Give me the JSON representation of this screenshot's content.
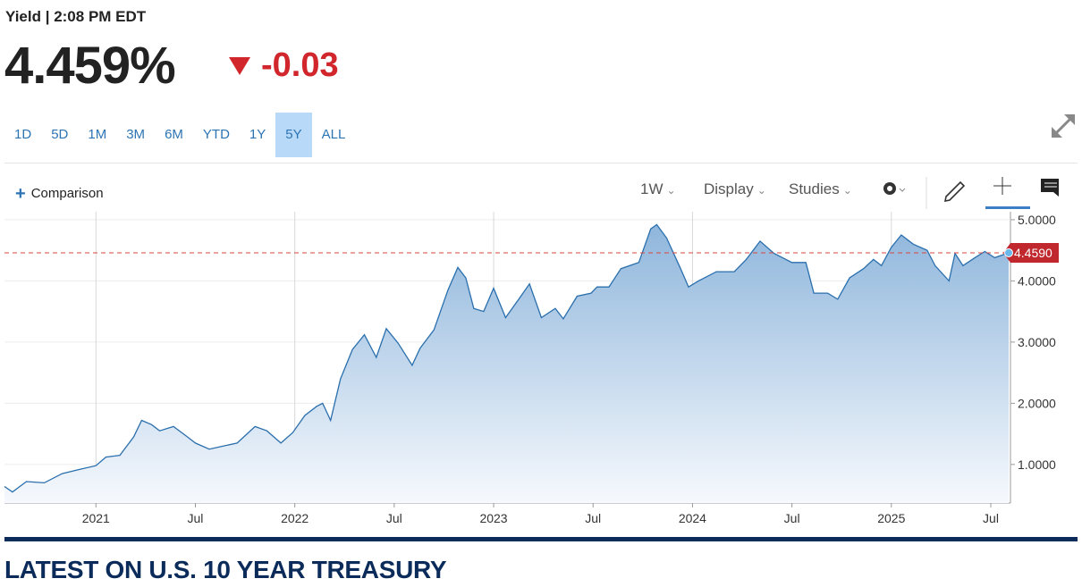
{
  "header": {
    "label": "Yield | 2:08 PM EDT",
    "price": "4.459%",
    "change": "-0.03"
  },
  "ranges": {
    "buttons": [
      "1D",
      "5D",
      "1M",
      "3M",
      "6M",
      "YTD",
      "1Y",
      "5Y",
      "ALL"
    ],
    "active": "5Y"
  },
  "toolbar": {
    "comparison": "Comparison",
    "interval": "1W",
    "display": "Display",
    "studies": "Studies"
  },
  "chart_data": {
    "type": "area",
    "x": [
      2020.54,
      2020.58,
      2020.65,
      2020.74,
      2020.83,
      2020.92,
      2021.0,
      2021.05,
      2021.12,
      2021.19,
      2021.23,
      2021.28,
      2021.32,
      2021.39,
      2021.46,
      2021.5,
      2021.57,
      2021.64,
      2021.71,
      2021.8,
      2021.86,
      2021.93,
      2021.99,
      2022.05,
      2022.11,
      2022.14,
      2022.18,
      2022.23,
      2022.29,
      2022.35,
      2022.41,
      2022.46,
      2022.52,
      2022.59,
      2022.63,
      2022.7,
      2022.77,
      2022.82,
      2022.86,
      2022.9,
      2022.95,
      2023.0,
      2023.06,
      2023.13,
      2023.18,
      2023.24,
      2023.31,
      2023.35,
      2023.42,
      2023.49,
      2023.52,
      2023.58,
      2023.64,
      2023.73,
      2023.79,
      2023.82,
      2023.87,
      2023.94,
      2023.98,
      2024.03,
      2024.12,
      2024.21,
      2024.27,
      2024.34,
      2024.41,
      2024.5,
      2024.57,
      2024.61,
      2024.68,
      2024.73,
      2024.79,
      2024.86,
      2024.91,
      2024.95,
      2025.0,
      2025.05,
      2025.11,
      2025.18,
      2025.22,
      2025.29,
      2025.32,
      2025.36,
      2025.42,
      2025.47,
      2025.52,
      2025.59
    ],
    "values": [
      0.64,
      0.55,
      0.72,
      0.7,
      0.85,
      0.92,
      0.98,
      1.12,
      1.15,
      1.45,
      1.72,
      1.65,
      1.55,
      1.62,
      1.45,
      1.35,
      1.25,
      1.3,
      1.35,
      1.62,
      1.55,
      1.35,
      1.52,
      1.8,
      1.95,
      2.0,
      1.72,
      2.4,
      2.88,
      3.12,
      2.75,
      3.22,
      2.98,
      2.62,
      2.9,
      3.2,
      3.85,
      4.22,
      4.05,
      3.55,
      3.5,
      3.88,
      3.4,
      3.72,
      3.95,
      3.4,
      3.55,
      3.38,
      3.75,
      3.8,
      3.9,
      3.9,
      4.2,
      4.3,
      4.85,
      4.92,
      4.7,
      4.2,
      3.9,
      4.0,
      4.15,
      4.15,
      4.35,
      4.65,
      4.45,
      4.3,
      4.3,
      3.8,
      3.8,
      3.7,
      4.05,
      4.2,
      4.35,
      4.25,
      4.55,
      4.75,
      4.6,
      4.5,
      4.25,
      4.0,
      4.45,
      4.25,
      4.38,
      4.48,
      4.38,
      4.459
    ],
    "color": "#2a6fad",
    "xlim": [
      2020.54,
      2025.59
    ],
    "ylim": [
      0.37,
      5.13
    ],
    "xticks": [
      2021,
      {
        "value": 2021.5,
        "label": "Jul"
      },
      2022,
      {
        "value": 2022.5,
        "label": "Jul"
      },
      2023,
      {
        "value": 2023.5,
        "label": "Jul"
      },
      2024,
      {
        "value": 2024.5,
        "label": "Jul"
      },
      2025,
      {
        "value": 2025.5,
        "label": "Jul"
      }
    ],
    "yticks": [
      {
        "value": 1,
        "label": "1.0000"
      },
      {
        "value": 2,
        "label": "2.0000"
      },
      {
        "value": 3,
        "label": "3.0000"
      },
      {
        "value": 4,
        "label": "4.0000"
      },
      {
        "value": 5,
        "label": "5.0000"
      }
    ],
    "last_price": {
      "value": 4.459,
      "label": "4.4590"
    },
    "grid": true
  },
  "footer": {
    "heading": "LATEST ON U.S. 10 YEAR TREASURY"
  }
}
